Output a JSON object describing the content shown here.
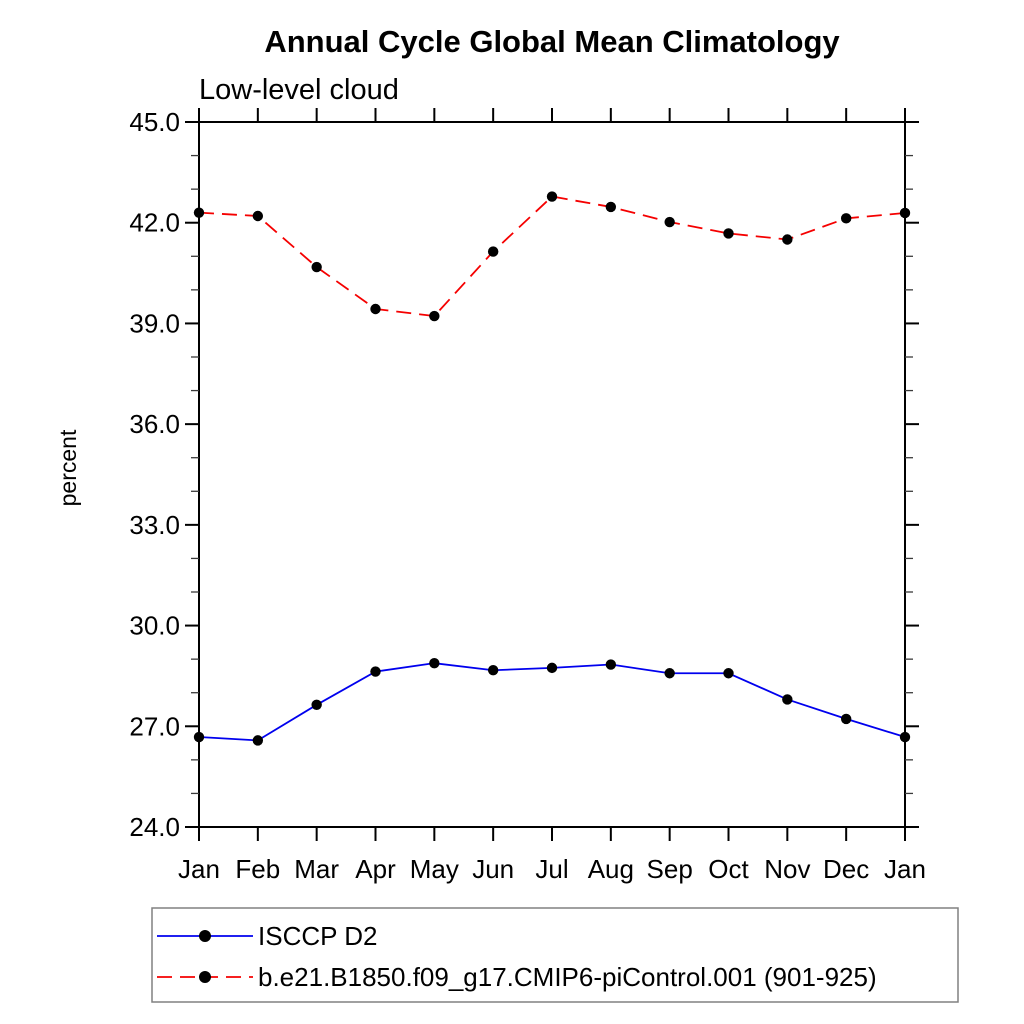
{
  "page": {
    "background": "#ffffff"
  },
  "chart_data": {
    "type": "line",
    "title": "Annual Cycle Global Mean Climatology",
    "subtitle": "Low-level cloud",
    "ylabel": "percent",
    "xlabel": "",
    "x_categories": [
      "Jan",
      "Feb",
      "Mar",
      "Apr",
      "May",
      "Jun",
      "Jul",
      "Aug",
      "Sep",
      "Oct",
      "Nov",
      "Dec",
      "Jan"
    ],
    "ylim": [
      24.0,
      45.0
    ],
    "y_major_ticks": [
      24,
      27,
      30,
      33,
      36,
      39,
      42,
      45
    ],
    "y_major_tick_labels": [
      "24.0",
      "27.0",
      "30.0",
      "33.0",
      "36.0",
      "39.0",
      "42.0",
      "45.0"
    ],
    "y_minor_step": 1.0,
    "grid": false,
    "legend_position": "bottom-left-box",
    "frame_color": "#000000",
    "marker_color": "#000000",
    "series": [
      {
        "name": "ISCCP D2",
        "color": "#0000ee",
        "style": "solid",
        "marker": "filled-circle",
        "values": [
          26.68,
          26.58,
          27.64,
          28.63,
          28.88,
          28.67,
          28.74,
          28.84,
          28.58,
          28.58,
          27.8,
          27.22,
          26.68
        ]
      },
      {
        "name": "b.e21.B1850.f09_g17.CMIP6-piControl.001 (901-925)",
        "color": "#f50000",
        "style": "dashed",
        "marker": "filled-circle",
        "values": [
          42.3,
          42.2,
          40.68,
          39.43,
          39.22,
          41.14,
          42.78,
          42.47,
          42.02,
          41.68,
          41.5,
          42.13,
          42.29
        ]
      }
    ]
  }
}
